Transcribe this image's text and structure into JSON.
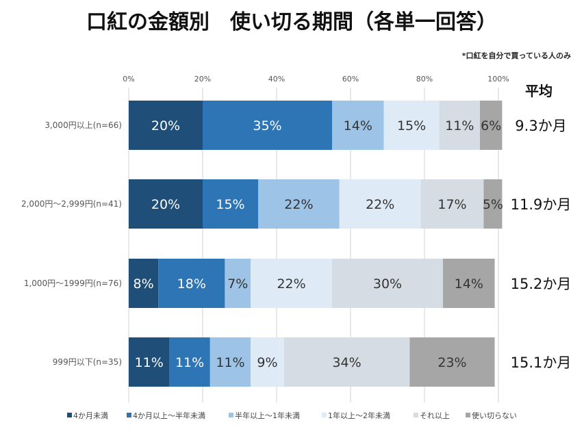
{
  "chart_data": {
    "type": "bar",
    "orientation": "horizontal",
    "stacked": true,
    "title": "口紅の金額別　使い切る期間（各単一回答）",
    "note": "*口紅を自分で買っている人のみ",
    "xlim": [
      0,
      100
    ],
    "x_ticks": [
      "0%",
      "20%",
      "40%",
      "60%",
      "80%",
      "100%"
    ],
    "categories": [
      "3,000円以上(n=66)",
      "2,000円～2,999円(n=41)",
      "1,000円～1999円(n=76)",
      "999円以下(n=35)"
    ],
    "series": [
      {
        "name": "4か月未満",
        "color": "#1f4e79",
        "values": [
          20,
          20,
          8,
          11
        ],
        "labels": [
          "20%",
          "20%",
          "8%",
          "11%"
        ]
      },
      {
        "name": "4か月以上～半年未満",
        "color": "#2e75b6",
        "values": [
          35,
          15,
          18,
          11
        ],
        "labels": [
          "35%",
          "15%",
          "18%",
          "11%"
        ]
      },
      {
        "name": "半年以上～1年未満",
        "color": "#9dc3e6",
        "values": [
          14,
          22,
          7,
          11
        ],
        "labels": [
          "14%",
          "22%",
          "7%",
          "11%"
        ]
      },
      {
        "name": "1年以上～2年未満",
        "color": "#deebf7",
        "values": [
          15,
          22,
          22,
          9
        ],
        "labels": [
          "15%",
          "22%",
          "22%",
          "9%"
        ]
      },
      {
        "name": "それ以上",
        "color": "#d6dce4",
        "values": [
          11,
          17,
          30,
          34
        ],
        "labels": [
          "11%",
          "17%",
          "30%",
          "34%"
        ]
      },
      {
        "name": "使い切らない",
        "color": "#a6a6a6",
        "values": [
          6,
          5,
          14,
          23
        ],
        "labels": [
          "6%",
          "5%",
          "14%",
          "23%"
        ]
      }
    ],
    "average_header": "平均",
    "averages": [
      "9.3か月",
      "11.9か月",
      "15.2か月",
      "15.1か月"
    ],
    "legend_position": "bottom"
  }
}
